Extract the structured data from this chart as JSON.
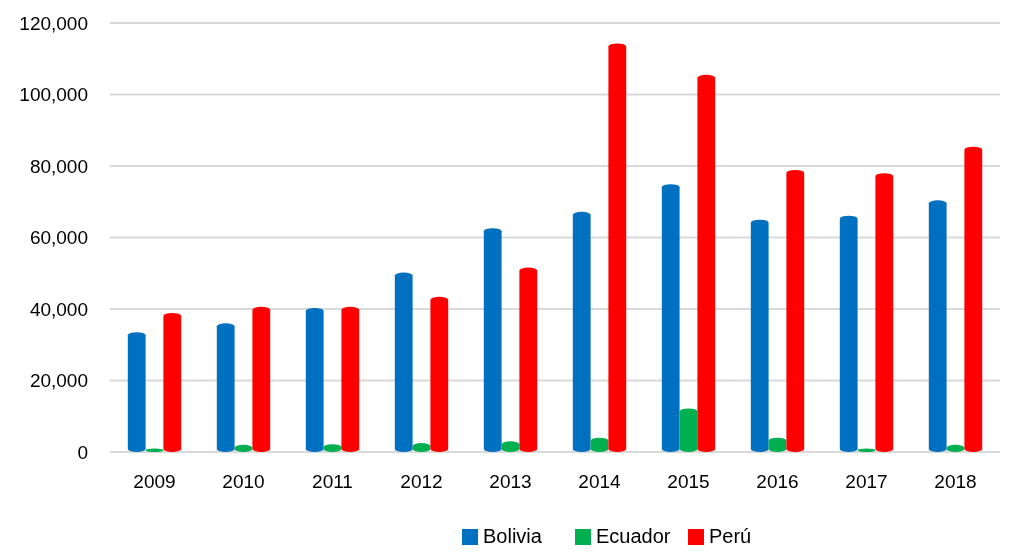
{
  "chart_data": {
    "type": "bar",
    "categories": [
      "2009",
      "2010",
      "2011",
      "2012",
      "2013",
      "2014",
      "2015",
      "2016",
      "2017",
      "2018"
    ],
    "series": [
      {
        "name": "Bolivia",
        "color": "#0070c0",
        "values": [
          33500,
          36000,
          40300,
          50200,
          62600,
          67200,
          74900,
          65000,
          66100,
          70400
        ]
      },
      {
        "name": "Ecuador",
        "color": "#00b050",
        "values": [
          1000,
          2000,
          2200,
          2500,
          3000,
          4000,
          12200,
          4000,
          1000,
          2000
        ]
      },
      {
        "name": "Perú",
        "color": "#ff0000",
        "values": [
          38900,
          40600,
          40600,
          43400,
          51600,
          114300,
          105500,
          78900,
          78000,
          85400
        ]
      }
    ],
    "ylim": [
      0,
      120000
    ],
    "yticks": [
      {
        "value": 0,
        "label": "0"
      },
      {
        "value": 20000,
        "label": "20,000"
      },
      {
        "value": 40000,
        "label": "40,000"
      },
      {
        "value": 60000,
        "label": "60,000"
      },
      {
        "value": 80000,
        "label": "80,000"
      },
      {
        "value": 100000,
        "label": "100,000"
      },
      {
        "value": 120000,
        "label": "120,000"
      }
    ],
    "grid": "y",
    "legend": "bottom"
  }
}
